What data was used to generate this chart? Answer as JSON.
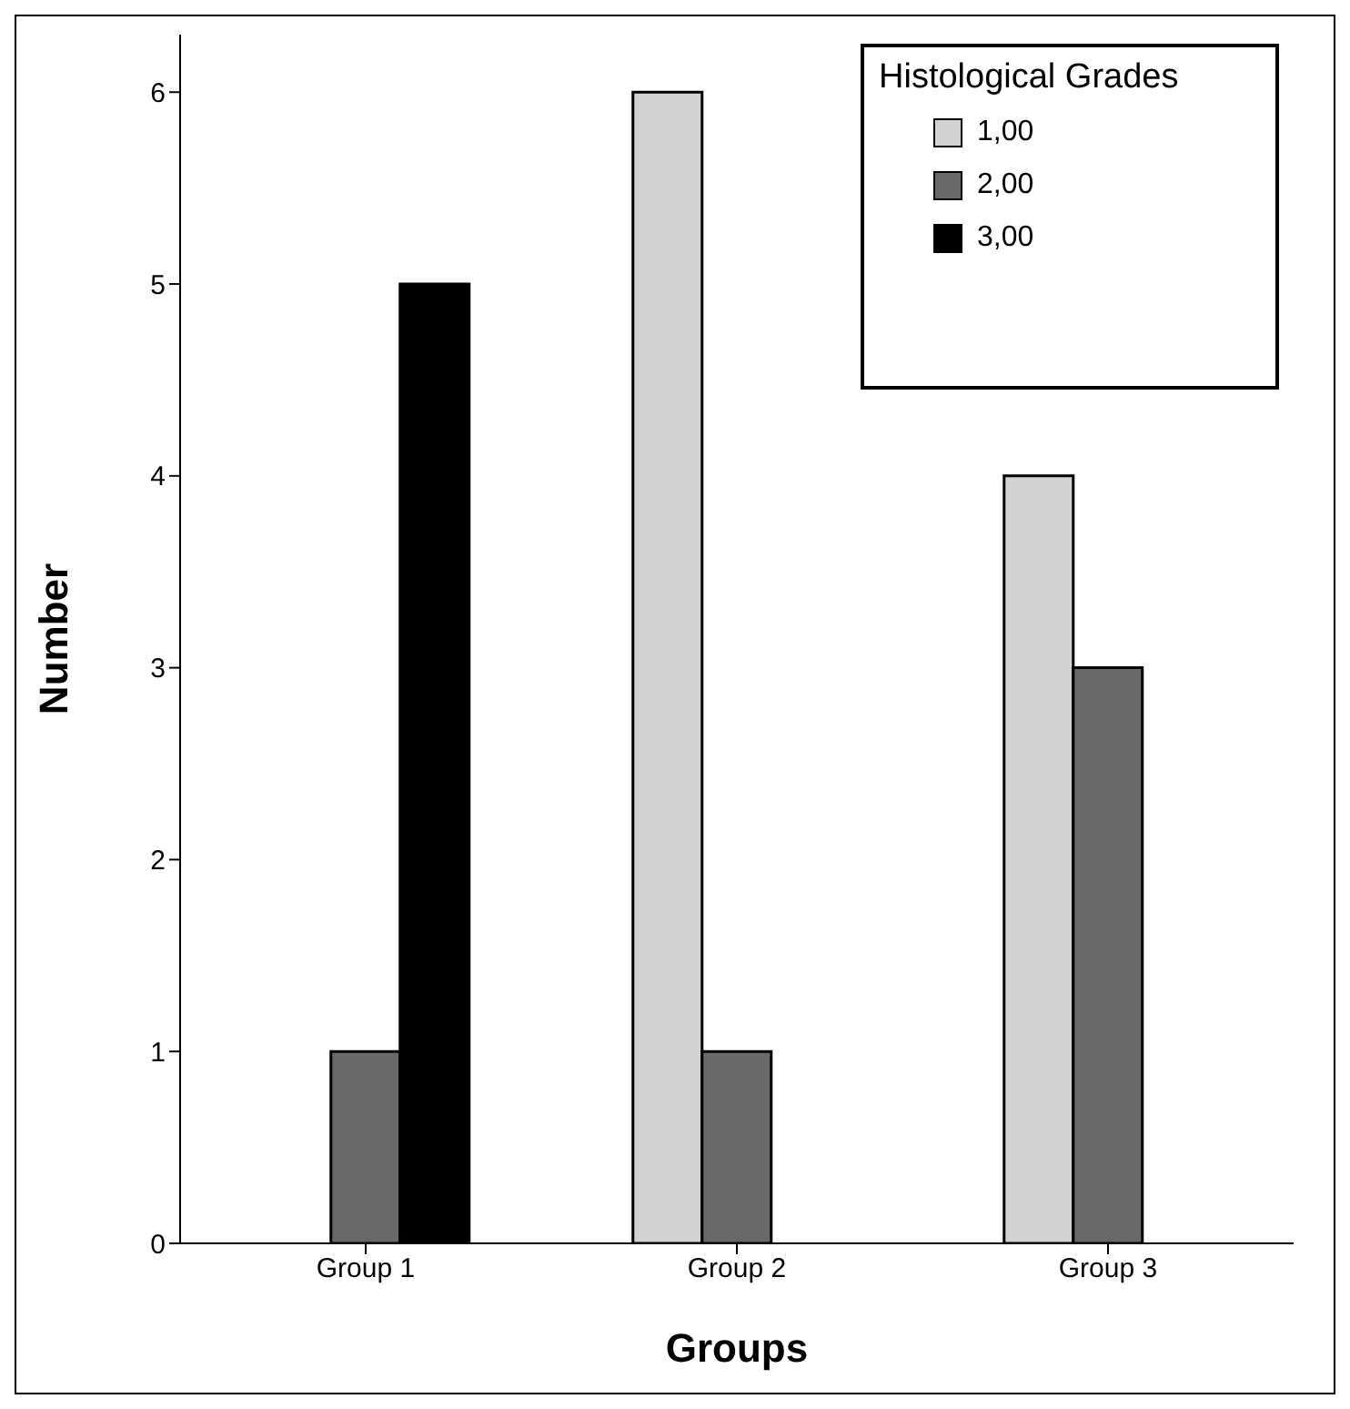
{
  "chart_data": {
    "type": "bar",
    "xlabel": "Groups",
    "ylabel": "Number",
    "legend_title": "Histological Grades",
    "categories": [
      "Group 1",
      "Group 2",
      "Group 3"
    ],
    "series": [
      {
        "name": "1,00",
        "color": "#d3d3d3",
        "values": [
          0,
          6,
          4
        ]
      },
      {
        "name": "2,00",
        "color": "#696969",
        "values": [
          1,
          1,
          3
        ]
      },
      {
        "name": "3,00",
        "color": "#000000",
        "values": [
          5,
          0,
          0
        ]
      }
    ],
    "ylim": [
      0,
      6.3
    ],
    "yticks": [
      0,
      1,
      2,
      3,
      4,
      5,
      6
    ],
    "grid": false,
    "legend": "top right"
  }
}
